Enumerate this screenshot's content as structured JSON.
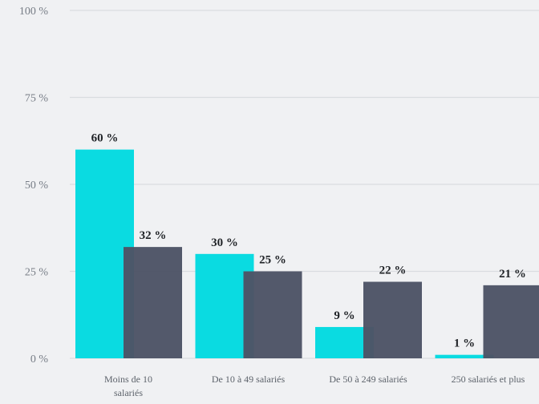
{
  "chart_data": {
    "type": "bar",
    "categories": [
      "Moins de 10 salariés",
      "De 10 à 49 salariés",
      "De 50 à 249 salariés",
      "250 salariés et plus"
    ],
    "series": [
      {
        "values": [
          60,
          30,
          9,
          1
        ],
        "labels": [
          "60 %",
          "30 %",
          "9 %",
          "1 %"
        ],
        "color": "#0adbe1"
      },
      {
        "values": [
          32,
          25,
          22,
          21
        ],
        "labels": [
          "32 %",
          "25 %",
          "22 %",
          "21 %"
        ],
        "color": "#4d5466"
      }
    ],
    "category_label_lines": [
      [
        "Moins de 10",
        "salariés"
      ],
      [
        "De 10 à 49 salariés"
      ],
      [
        "De 50 à 249 salariés"
      ],
      [
        "250 salariés et plus"
      ]
    ],
    "yticks": [
      0,
      25,
      50,
      75,
      100
    ],
    "ytick_labels": [
      "0 %",
      "25 %",
      "50 %",
      "75 %",
      "100 %"
    ],
    "ylim": [
      0,
      100
    ],
    "grid": true,
    "title": "",
    "xlabel": "",
    "ylabel": ""
  }
}
